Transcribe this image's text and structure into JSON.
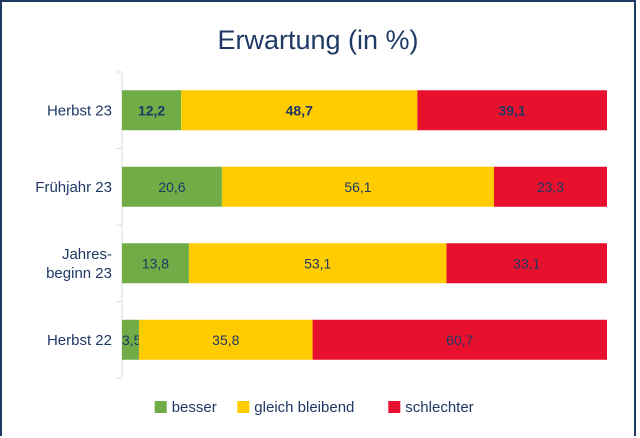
{
  "chart_data": {
    "type": "bar",
    "orientation": "horizontal",
    "stacked": true,
    "title": "Erwartung (in %)",
    "categories": [
      "Herbst 23",
      "Frühjahr 23",
      "Jahres-\nbeginn 23",
      "Herbst 22"
    ],
    "series": [
      {
        "name": "besser",
        "color": "#70ad47",
        "values": [
          12.2,
          20.6,
          13.8,
          3.5
        ],
        "labels": [
          "12,2",
          "20,6",
          "13,8",
          "3,5"
        ]
      },
      {
        "name": "gleich bleibend",
        "color": "#ffcc00",
        "values": [
          48.7,
          56.1,
          53.1,
          35.8
        ],
        "labels": [
          "48,7",
          "56,1",
          "53,1",
          "35,8"
        ]
      },
      {
        "name": "schlechter",
        "color": "#e8112d",
        "values": [
          39.1,
          23.3,
          33.1,
          60.7
        ],
        "labels": [
          "39,1",
          "23,3",
          "33,1",
          "60,7"
        ]
      }
    ],
    "bold_category_index": 0,
    "legend_position": "bottom",
    "text_color": "#1f3864"
  }
}
